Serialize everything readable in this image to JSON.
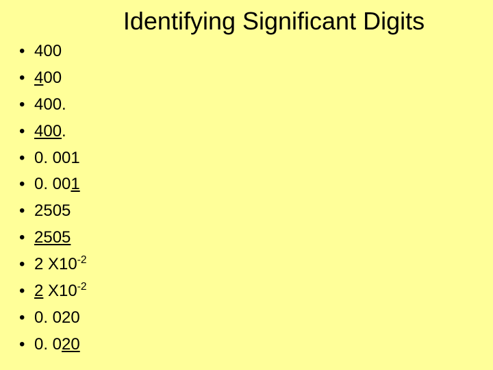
{
  "title": "Identifying Significant Digits",
  "background_color": "#ffff99",
  "text_color": "#000000",
  "title_fontsize": 36,
  "list_fontsize": 24,
  "items": [
    {
      "segments": [
        {
          "text": "400",
          "underline": false
        }
      ]
    },
    {
      "segments": [
        {
          "text": "4",
          "underline": true
        },
        {
          "text": "00",
          "underline": false
        }
      ]
    },
    {
      "segments": [
        {
          "text": "400.",
          "underline": false
        }
      ]
    },
    {
      "segments": [
        {
          "text": "400",
          "underline": true
        },
        {
          "text": ".",
          "underline": false
        }
      ]
    },
    {
      "segments": [
        {
          "text": "0. 001",
          "underline": false
        }
      ]
    },
    {
      "segments": [
        {
          "text": "0. 00",
          "underline": false
        },
        {
          "text": "1",
          "underline": true
        }
      ]
    },
    {
      "segments": [
        {
          "text": "2505",
          "underline": false
        }
      ]
    },
    {
      "segments": [
        {
          "text": "2505",
          "underline": true
        }
      ]
    },
    {
      "segments": [
        {
          "text": "2 X10",
          "underline": false
        },
        {
          "text": "-2",
          "underline": false,
          "super": true
        }
      ]
    },
    {
      "segments": [
        {
          "text": "2",
          "underline": true
        },
        {
          "text": " X10",
          "underline": false
        },
        {
          "text": "-2",
          "underline": false,
          "super": true
        }
      ]
    },
    {
      "segments": [
        {
          "text": "0. 020",
          "underline": false
        }
      ]
    },
    {
      "segments": [
        {
          "text": "0. 0",
          "underline": false
        },
        {
          "text": "20",
          "underline": true
        }
      ]
    }
  ]
}
